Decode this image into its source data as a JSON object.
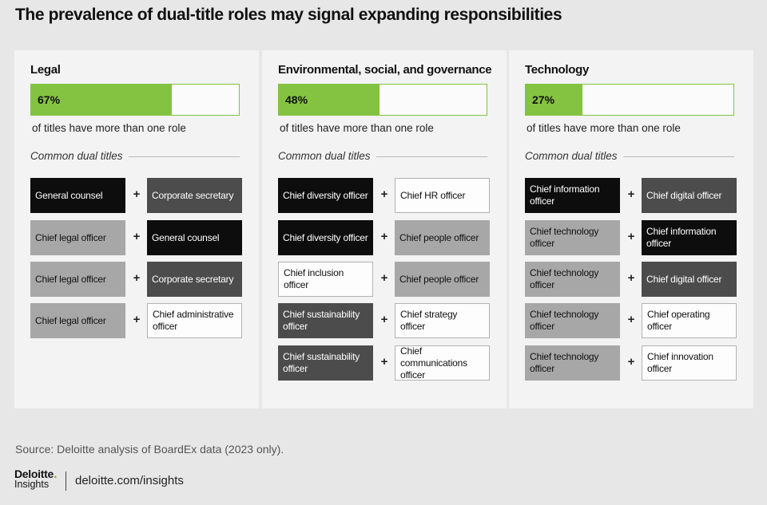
{
  "title": "The prevalence of dual-title roles may signal expanding responsibilities",
  "colors": {
    "accent_green": "#84c341",
    "tile_black": "#0d0d0d",
    "tile_dark_gray": "#4c4c4c",
    "tile_light_gray": "#a7a7a7",
    "tile_white": "#fdfdfd"
  },
  "chart_data": {
    "type": "bar",
    "categories": [
      "Legal",
      "Environmental, social, and governance",
      "Technology"
    ],
    "values": [
      67,
      48,
      27
    ],
    "unit": "%",
    "value_labels": [
      "67%",
      "48%",
      "27%"
    ],
    "bar_caption": "of titles have more than one role",
    "common_label": "Common dual titles",
    "ylim": [
      0,
      100
    ],
    "panels": [
      {
        "heading": "Legal",
        "percent": 67,
        "percent_label": "67%",
        "pairs": [
          {
            "left": "General counsel",
            "left_style": "black",
            "right": "Corporate secretary",
            "right_style": "dark"
          },
          {
            "left": "Chief legal officer",
            "left_style": "light",
            "right": "General counsel",
            "right_style": "black"
          },
          {
            "left": "Chief legal officer",
            "left_style": "light",
            "right": "Corporate secretary",
            "right_style": "dark"
          },
          {
            "left": "Chief legal officer",
            "left_style": "light",
            "right": "Chief administrative officer",
            "right_style": "white"
          }
        ]
      },
      {
        "heading": "Environmental, social, and governance",
        "percent": 48,
        "percent_label": "48%",
        "pairs": [
          {
            "left": "Chief diversity officer",
            "left_style": "black",
            "right": "Chief HR officer",
            "right_style": "white"
          },
          {
            "left": "Chief diversity officer",
            "left_style": "black",
            "right": "Chief people officer",
            "right_style": "light"
          },
          {
            "left": "Chief inclusion officer",
            "left_style": "white",
            "right": "Chief people officer",
            "right_style": "light"
          },
          {
            "left": "Chief sustainability officer",
            "left_style": "dark",
            "right": "Chief strategy officer",
            "right_style": "white"
          },
          {
            "left": "Chief sustainability officer",
            "left_style": "dark",
            "right": "Chief communications officer",
            "right_style": "white"
          }
        ]
      },
      {
        "heading": "Technology",
        "percent": 27,
        "percent_label": "27%",
        "pairs": [
          {
            "left": "Chief information officer",
            "left_style": "black",
            "right": "Chief digital officer",
            "right_style": "dark"
          },
          {
            "left": "Chief technology officer",
            "left_style": "light",
            "right": "Chief information officer",
            "right_style": "black"
          },
          {
            "left": "Chief technology officer",
            "left_style": "light",
            "right": "Chief digital officer",
            "right_style": "dark"
          },
          {
            "left": "Chief technology officer",
            "left_style": "light",
            "right": "Chief operating officer",
            "right_style": "white"
          },
          {
            "left": "Chief technology officer",
            "left_style": "light",
            "right": "Chief innovation officer",
            "right_style": "white"
          }
        ]
      }
    ]
  },
  "plus_symbol": "+",
  "source": "Source: Deloitte analysis of BoardEx data (2023 only).",
  "footer": {
    "logo_main": "Deloitte",
    "logo_dot": ".",
    "logo_sub": "Insights",
    "url": "deloitte.com/insights"
  }
}
